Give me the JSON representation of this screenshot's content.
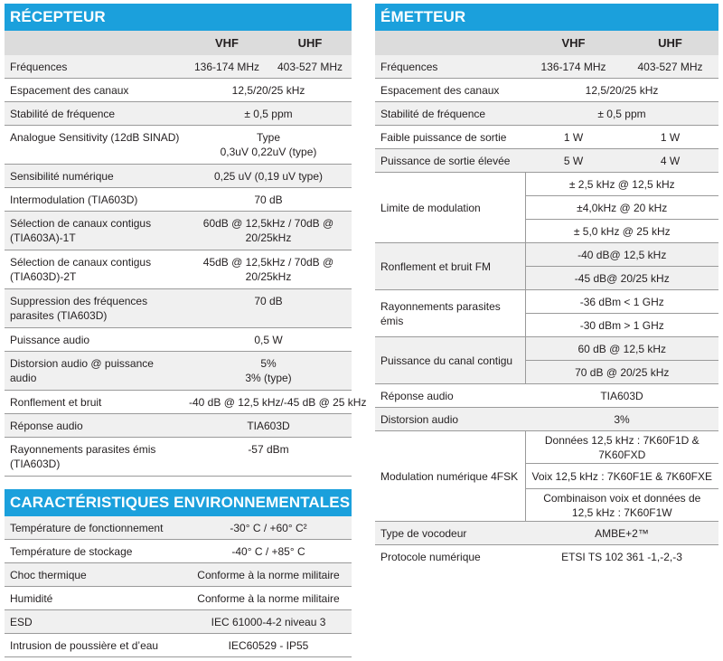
{
  "receiver": {
    "title": "RÉCEPTEUR",
    "col_vhf": "VHF",
    "col_uhf": "UHF",
    "rows": [
      {
        "label": "Fréquences",
        "vhf": "136-174 MHz",
        "uhf": "403-527 MHz"
      },
      {
        "label": "Espacement des canaux",
        "value": "12,5/20/25 kHz"
      },
      {
        "label": "Stabilité de fréquence",
        "value": "± 0,5 ppm"
      },
      {
        "label": "Analogue Sensitivity (12dB SINAD)",
        "value": "Type\n0,3uV 0,22uV (type)"
      },
      {
        "label": "Sensibilité numérique",
        "value": "0,25 uV (0,19 uV type)"
      },
      {
        "label": "Intermodulation (TIA603D)",
        "value": "70 dB"
      },
      {
        "label": "Sélection de canaux contigus (TIA603A)-1T",
        "value": "60dB @ 12,5kHz / 70dB @ 20/25kHz"
      },
      {
        "label": "Sélection de canaux contigus (TIA603D)-2T",
        "value": "45dB @ 12,5kHz / 70dB @ 20/25kHz"
      },
      {
        "label": "Suppression des fréquences parasites (TIA603D)",
        "value": "70 dB"
      },
      {
        "label": "Puissance audio",
        "value": "0,5 W"
      },
      {
        "label": "Distorsion audio @ puissance audio",
        "value": "5%\n3% (type)"
      },
      {
        "label": "Ronflement et bruit",
        "value": "-40 dB @ 12,5 kHz/-45 dB @ 25 kHz"
      },
      {
        "label": "Réponse audio",
        "value": "TIA603D"
      },
      {
        "label": "Rayonnements parasites émis (TIA603D)",
        "value": "-57 dBm"
      }
    ]
  },
  "environment": {
    "title": "CARACTÉRISTIQUES ENVIRONNEMENTALES",
    "rows": [
      {
        "label": "Température de  fonctionnement",
        "value": "-30° C / +60° C²"
      },
      {
        "label": "Température de stockage",
        "value": "-40° C / +85° C"
      },
      {
        "label": "Choc thermique",
        "value": "Conforme à la norme militaire"
      },
      {
        "label": "Humidité",
        "value": "Conforme à la norme militaire"
      },
      {
        "label": "ESD",
        "value": "IEC 61000-4-2 niveau 3"
      },
      {
        "label": "Intrusion de poussière et d’eau",
        "value": "IEC60529 - IP55"
      }
    ]
  },
  "transmitter": {
    "title": "ÉMETTEUR",
    "col_vhf": "VHF",
    "col_uhf": "UHF",
    "freq": {
      "label": "Fréquences",
      "vhf": "136-174 MHz",
      "uhf": "403-527 MHz"
    },
    "spacing": {
      "label": "Espacement des canaux",
      "value": "12,5/20/25 kHz"
    },
    "stability": {
      "label": "Stabilité de fréquence",
      "value": "± 0,5 ppm"
    },
    "low_power": {
      "label": "Faible puissance de sortie",
      "vhf": "1 W",
      "uhf": "1 W"
    },
    "high_power": {
      "label": "Puissance de sortie élevée",
      "vhf": "5 W",
      "uhf": "4 W"
    },
    "modulation_limit": {
      "label": "Limite de modulation",
      "values": [
        "± 2,5 kHz @ 12,5 kHz",
        "±4,0kHz @ 20 kHz",
        "± 5,0 kHz @ 25 kHz"
      ]
    },
    "hum_noise": {
      "label": "Ronflement et bruit FM",
      "values": [
        "-40 dB@ 12,5 kHz",
        "-45 dB@ 20/25 kHz"
      ]
    },
    "spurious": {
      "label": "Rayonnements parasites émis",
      "values": [
        "-36 dBm < 1 GHz",
        "-30 dBm > 1 GHz"
      ]
    },
    "adjacent_power": {
      "label": "Puissance du canal contigu",
      "values": [
        "60 dB @ 12,5 kHz",
        "70 dB @ 20/25 kHz"
      ]
    },
    "audio_response": {
      "label": "Réponse audio",
      "value": "TIA603D"
    },
    "audio_distortion": {
      "label": "Distorsion audio",
      "value": "3%"
    },
    "digital_modulation": {
      "label": "Modulation numérique 4FSK",
      "values": [
        "Données 12,5 kHz : 7K60F1D & 7K60FXD",
        "Voix 12,5 kHz : 7K60F1E & 7K60FXE",
        "Combinaison voix et données de 12,5 kHz : 7K60F1W"
      ]
    },
    "vocoder": {
      "label": "Type de vocodeur",
      "value": "AMBE+2™"
    },
    "protocol": {
      "label": "Protocole numérique",
      "value": "ETSI TS 102 361 -1,-2,-3"
    }
  }
}
